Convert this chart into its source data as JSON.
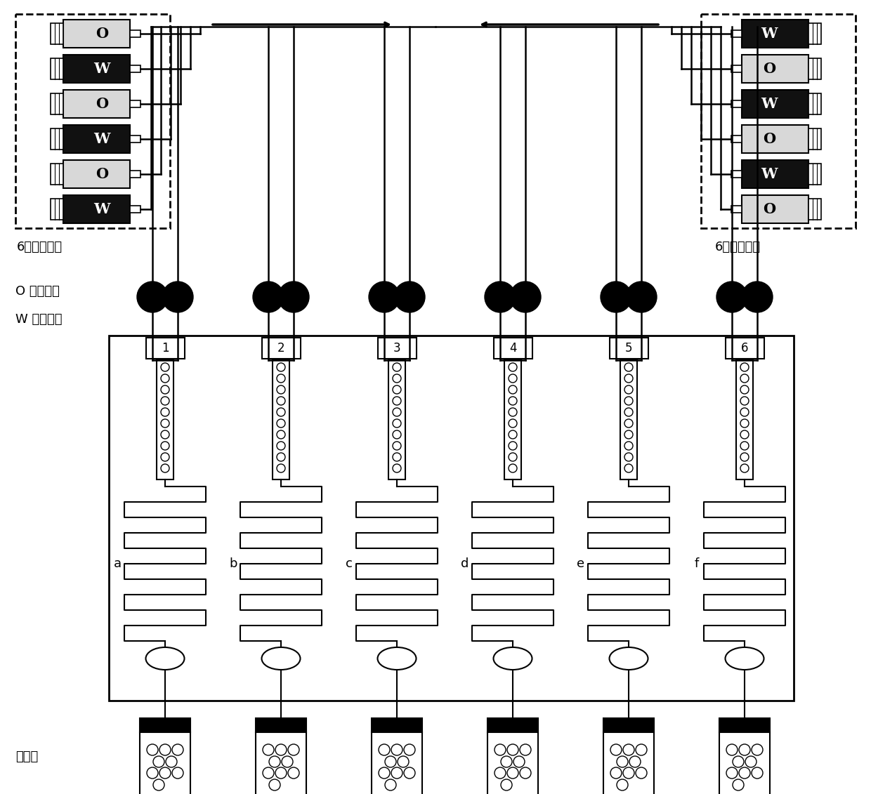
{
  "bg_color": "#ffffff",
  "line_color": "#000000",
  "left_pump_label": "6通道注射泵",
  "right_pump_label": "6通道注射泵",
  "legend_o": "O 为分散相",
  "legend_w": "W 为连续相",
  "collect_label": "收集瓶",
  "left_syringes": [
    "O",
    "W",
    "O",
    "W",
    "O",
    "W"
  ],
  "right_syringes": [
    "W",
    "O",
    "W",
    "O",
    "W",
    "O"
  ],
  "left_blacks": [
    false,
    true,
    false,
    true,
    false,
    true
  ],
  "right_blacks": [
    true,
    false,
    true,
    false,
    true,
    false
  ],
  "channel_labels": [
    "1",
    "2",
    "3",
    "4",
    "5",
    "6"
  ],
  "channel_letters": [
    "a",
    "b",
    "c",
    "d",
    "e",
    "f"
  ]
}
